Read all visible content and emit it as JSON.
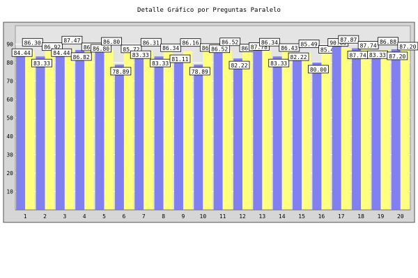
{
  "chart_data": {
    "type": "bar",
    "title": "Detalle Gráfico por Preguntas Paralelo",
    "categories": [
      "1",
      "2",
      "3",
      "4",
      "5",
      "6",
      "7",
      "8",
      "9",
      "10",
      "11",
      "12",
      "13",
      "14",
      "15",
      "16",
      "17",
      "18",
      "19",
      "20"
    ],
    "series": [
      {
        "color": "#8080f0",
        "values": [
          84.44,
          83.33,
          84.44,
          86.82,
          86.8,
          78.89,
          83.33,
          83.33,
          81.11,
          78.89,
          86.52,
          82.22,
          87.78,
          83.33,
          82.22,
          80.0,
          90.0,
          87.74,
          83.33,
          87.2
        ]
      },
      {
        "color": "#ffff80",
        "values": [
          86.3,
          86.92,
          87.47,
          86.82,
          86.8,
          85.72,
          86.31,
          86.34,
          86.16,
          86.46,
          86.52,
          86.24,
          86.34,
          86.43,
          85.49,
          85.47,
          87.87,
          87.74,
          86.88,
          87.2
        ]
      }
    ],
    "ylim": [
      0,
      100
    ],
    "yticks": [
      10,
      20,
      30,
      40,
      50,
      60,
      70,
      80,
      90
    ],
    "grid": true,
    "xlabel": "",
    "ylabel": ""
  }
}
